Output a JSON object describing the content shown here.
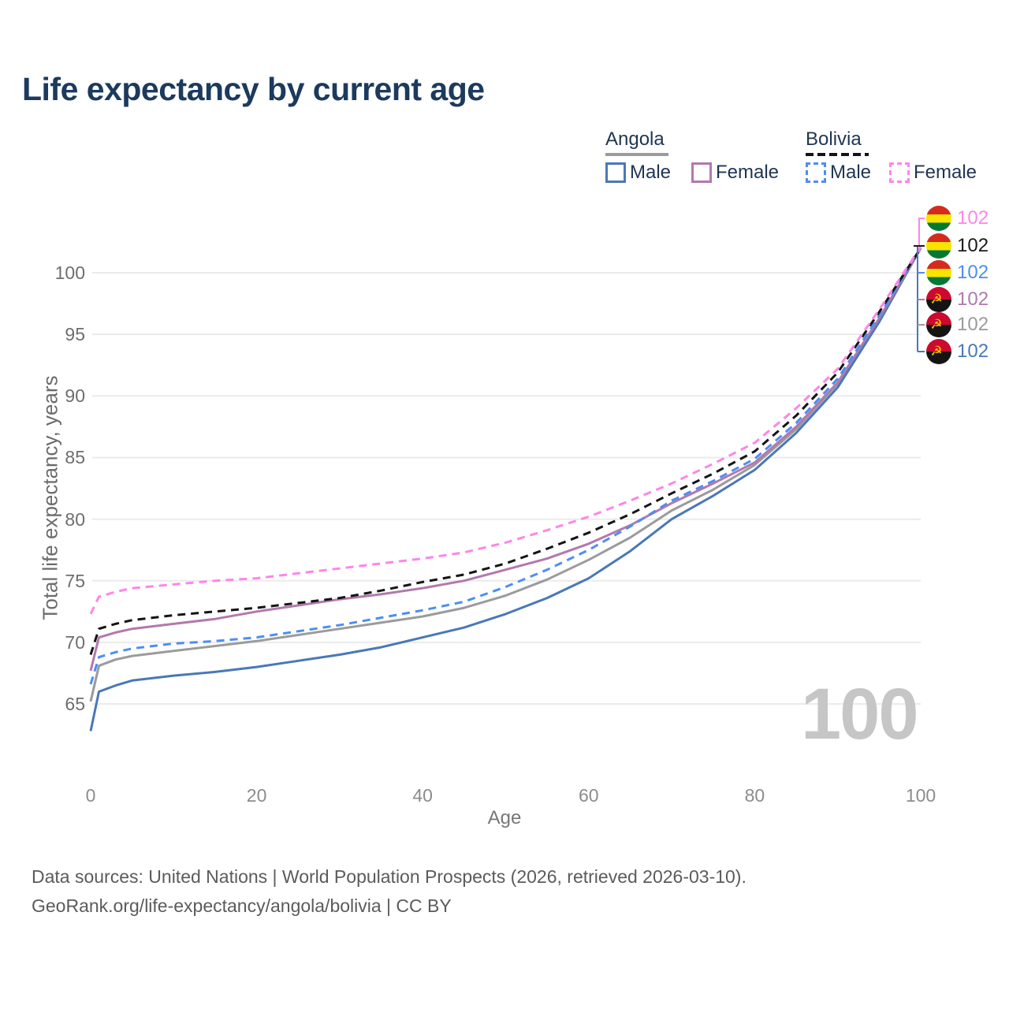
{
  "title": "Life expectancy by current age",
  "legend": {
    "groups": [
      {
        "label": "Angola",
        "underline_style": "solid",
        "underline_color": "#9b9b9b",
        "items": [
          {
            "label": "Male",
            "color": "#4a78b8",
            "dashed": false
          },
          {
            "label": "Female",
            "color": "#b279ae",
            "dashed": false
          }
        ]
      },
      {
        "label": "Bolivia",
        "underline_style": "dashed",
        "underline_color": "#141414",
        "items": [
          {
            "label": "Male",
            "color": "#4d8ef2",
            "dashed": true
          },
          {
            "label": "Female",
            "color": "#ff85e8",
            "dashed": true
          }
        ]
      }
    ]
  },
  "axes": {
    "y_title": "Total life expectancy, years",
    "x_title": "Age",
    "y_ticks": [
      100,
      95,
      90,
      85,
      80,
      75,
      70,
      65
    ],
    "x_ticks": [
      0,
      20,
      40,
      60,
      80,
      100
    ]
  },
  "watermark": "100",
  "end_labels": [
    {
      "flag": "bolivia",
      "value": "102",
      "color": "#ff85e8",
      "series": "Bolivia Female"
    },
    {
      "flag": "bolivia",
      "value": "102",
      "color": "#1a1a1a",
      "series": "Bolivia Both sexes"
    },
    {
      "flag": "bolivia",
      "value": "102",
      "color": "#4d8ef2",
      "series": "Bolivia Male"
    },
    {
      "flag": "angola",
      "value": "102",
      "color": "#b279ae",
      "series": "Angola Female"
    },
    {
      "flag": "angola",
      "value": "102",
      "color": "#9b9b9b",
      "series": "Angola Both sexes"
    },
    {
      "flag": "angola",
      "value": "102",
      "color": "#4a78b8",
      "series": "Angola Male"
    }
  ],
  "flags": {
    "bolivia": {
      "stripes": [
        "#d52b1e",
        "#f9e300",
        "#007934"
      ]
    },
    "angola": {
      "top": "#cc092f",
      "bottom": "#141414",
      "emblem_color": "#ffcb00",
      "emblem_glyph": "☭"
    }
  },
  "footer": {
    "line1": "Data sources: United Nations | World Population Prospects (2026, retrieved 2026-03-10).",
    "line2": "GeoRank.org/life-expectancy/angola/bolivia | CC BY"
  },
  "colors": {
    "gridline": "#ebebeb",
    "title": "#1c3a5e",
    "leader_spine": "#4a78b8"
  },
  "chart_data": {
    "type": "line",
    "title": "Life expectancy by current age",
    "xlabel": "Age",
    "ylabel": "Total life expectancy, years",
    "xlim": [
      0,
      100
    ],
    "ylim": [
      62,
      103
    ],
    "grid": "horizontal",
    "legend_position": "top-right",
    "x": [
      0,
      1,
      3,
      5,
      10,
      15,
      20,
      25,
      30,
      35,
      40,
      45,
      50,
      55,
      60,
      65,
      70,
      75,
      80,
      85,
      90,
      95,
      100
    ],
    "series": [
      {
        "name": "Angola Both sexes",
        "color": "#9b9b9b",
        "dash": "solid",
        "values": [
          65.2,
          68.1,
          68.6,
          68.9,
          69.3,
          69.7,
          70.1,
          70.6,
          71.1,
          71.6,
          72.1,
          72.8,
          73.8,
          75.1,
          76.7,
          78.5,
          80.7,
          82.4,
          84.4,
          87.3,
          91.0,
          96.2,
          102.0
        ]
      },
      {
        "name": "Angola Male",
        "color": "#4a78b8",
        "dash": "solid",
        "values": [
          62.8,
          66.0,
          66.5,
          66.9,
          67.3,
          67.6,
          68.0,
          68.5,
          69.0,
          69.6,
          70.4,
          71.2,
          72.3,
          73.6,
          75.2,
          77.4,
          80.0,
          81.9,
          84.0,
          87.0,
          90.7,
          96.0,
          102.0
        ]
      },
      {
        "name": "Angola Female",
        "color": "#b279ae",
        "dash": "solid",
        "values": [
          67.7,
          70.4,
          70.8,
          71.1,
          71.5,
          71.9,
          72.5,
          73.0,
          73.5,
          73.9,
          74.4,
          75.0,
          75.9,
          76.8,
          78.0,
          79.5,
          81.3,
          82.9,
          84.6,
          87.5,
          91.1,
          96.3,
          102.0
        ]
      },
      {
        "name": "Bolivia Male",
        "color": "#4d8ef2",
        "dash": "dashed",
        "values": [
          66.6,
          68.8,
          69.2,
          69.5,
          69.9,
          70.1,
          70.4,
          70.9,
          71.4,
          72.0,
          72.6,
          73.3,
          74.5,
          75.9,
          77.5,
          79.4,
          81.5,
          83.1,
          84.9,
          87.8,
          91.4,
          96.5,
          102.0
        ]
      },
      {
        "name": "Bolivia Both sexes",
        "color": "#141414",
        "dash": "dashed",
        "values": [
          69.0,
          71.1,
          71.5,
          71.8,
          72.2,
          72.5,
          72.8,
          73.2,
          73.6,
          74.2,
          74.9,
          75.5,
          76.4,
          77.6,
          78.9,
          80.4,
          82.1,
          83.7,
          85.5,
          88.4,
          91.9,
          96.8,
          102.0
        ]
      },
      {
        "name": "Bolivia Female",
        "color": "#ff85e8",
        "dash": "dashed",
        "values": [
          72.3,
          73.7,
          74.1,
          74.4,
          74.7,
          75.0,
          75.2,
          75.6,
          76.0,
          76.4,
          76.8,
          77.3,
          78.1,
          79.1,
          80.2,
          81.5,
          82.9,
          84.5,
          86.2,
          89.0,
          92.2,
          97.0,
          102.1
        ]
      }
    ]
  }
}
